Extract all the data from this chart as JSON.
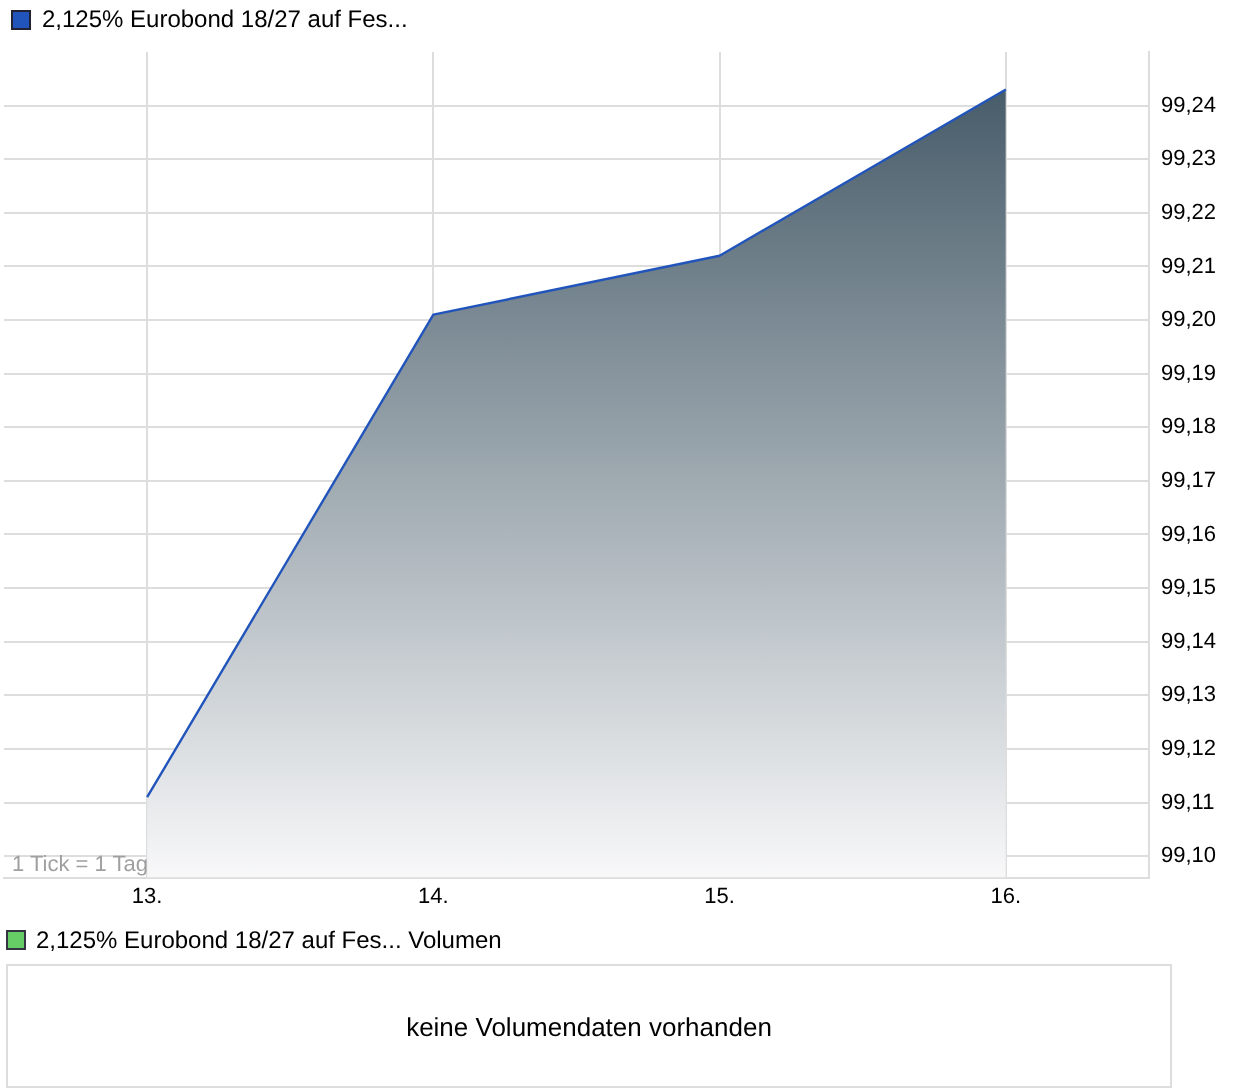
{
  "chart_data": [
    {
      "type": "area",
      "x": [
        13,
        14,
        15,
        16
      ],
      "series": [
        {
          "name": "2,125% Eurobond 18/27 auf Fes...",
          "color": "#2255bb",
          "values": [
            99.111,
            99.201,
            99.212,
            99.243
          ]
        }
      ],
      "xlim": [
        12.5,
        16.5
      ],
      "xticks": [
        {
          "value": 13,
          "label": "13."
        },
        {
          "value": 14,
          "label": "14."
        },
        {
          "value": 15,
          "label": "15."
        },
        {
          "value": 16,
          "label": "16."
        }
      ],
      "ylim": [
        99.096,
        99.25
      ],
      "yticks": [
        {
          "value": 99.1,
          "label": "99,10"
        },
        {
          "value": 99.11,
          "label": "99,11"
        },
        {
          "value": 99.12,
          "label": "99,12"
        },
        {
          "value": 99.13,
          "label": "99,13"
        },
        {
          "value": 99.14,
          "label": "99,14"
        },
        {
          "value": 99.15,
          "label": "99,15"
        },
        {
          "value": 99.16,
          "label": "99,16"
        },
        {
          "value": 99.17,
          "label": "99,17"
        },
        {
          "value": 99.18,
          "label": "99,18"
        },
        {
          "value": 99.19,
          "label": "99,19"
        },
        {
          "value": 99.2,
          "label": "99,20"
        },
        {
          "value": 99.21,
          "label": "99,21"
        },
        {
          "value": 99.22,
          "label": "99,22"
        },
        {
          "value": 99.23,
          "label": "99,23"
        },
        {
          "value": 99.24,
          "label": "99,24"
        }
      ],
      "grid": true,
      "legend": "top left",
      "annotations": [
        "1 Tick = 1 Tag"
      ]
    },
    {
      "type": "other",
      "series": [
        {
          "name": "2,125% Eurobond 18/27 auf Fes... Volumen",
          "color": "#66cc66"
        }
      ],
      "legend": "top left",
      "annotations": [
        "keine Volumendaten vorhanden"
      ]
    }
  ]
}
